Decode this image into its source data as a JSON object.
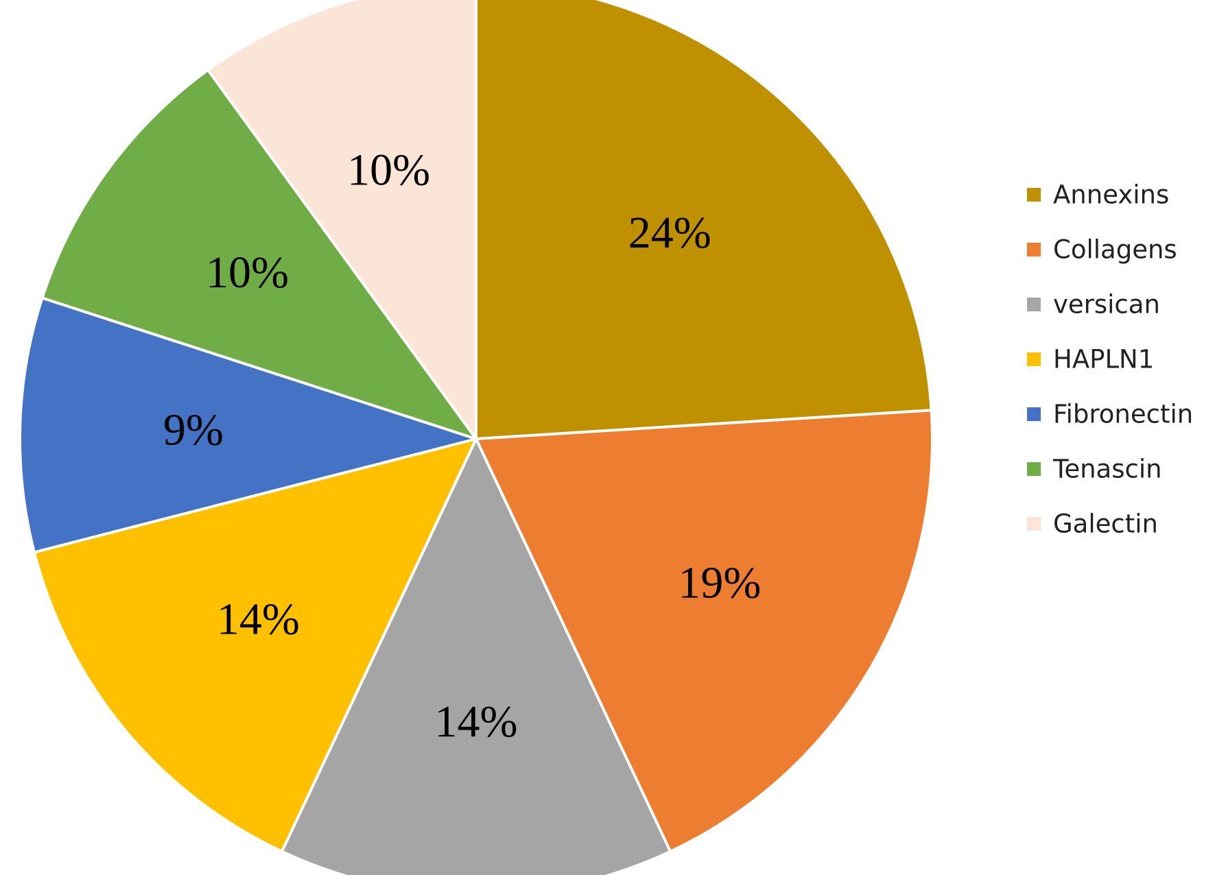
{
  "chart_data": {
    "type": "pie",
    "title": "",
    "legend_position": "right",
    "start_angle_deg": 0,
    "direction": "clockwise",
    "slices": [
      {
        "name": "Annexins",
        "value": 24,
        "label": "24%",
        "color": "#BF9000"
      },
      {
        "name": "Collagens",
        "value": 19,
        "label": "19%",
        "color": "#ED7D31"
      },
      {
        "name": "versican",
        "value": 14,
        "label": "14%",
        "color": "#A5A5A5"
      },
      {
        "name": "HAPLN1",
        "value": 14,
        "label": "14%",
        "color": "#FFC000"
      },
      {
        "name": "Fibronectin",
        "value": 9,
        "label": "9%",
        "color": "#4472C4"
      },
      {
        "name": "Tenascin",
        "value": 10,
        "label": "10%",
        "color": "#70AD47"
      },
      {
        "name": "Galectin",
        "value": 10,
        "label": "10%",
        "color": "#FBE5D6"
      }
    ]
  }
}
